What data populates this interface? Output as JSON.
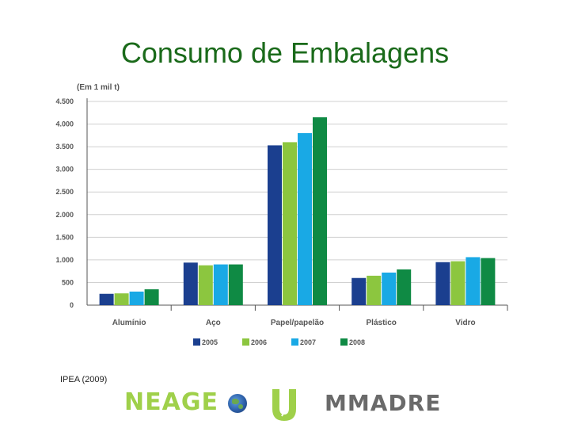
{
  "slide": {
    "title": "Consumo de Embalagens",
    "source": "IPEA (2009)",
    "logos": {
      "neage": "NEAGE",
      "mmadre": "MMADRE"
    }
  },
  "colors": {
    "title": "#1a6a1a",
    "axis": "#555555",
    "grid": "#d0d0d0"
  },
  "chart_data": {
    "type": "bar",
    "title": "",
    "unit_label": "(Em 1 mil t)",
    "categories": [
      "Alumínio",
      "Aço",
      "Papel/papelão",
      "Plástico",
      "Vidro"
    ],
    "series": [
      {
        "name": "2005",
        "color": "#1b3f8f",
        "values": [
          250,
          940,
          3530,
          600,
          950
        ]
      },
      {
        "name": "2006",
        "color": "#8cc63f",
        "values": [
          260,
          880,
          3600,
          650,
          970
        ]
      },
      {
        "name": "2007",
        "color": "#19a9e5",
        "values": [
          300,
          900,
          3800,
          720,
          1060
        ]
      },
      {
        "name": "2008",
        "color": "#0f8a44",
        "values": [
          350,
          900,
          4150,
          790,
          1040
        ]
      }
    ],
    "yticks": [
      {
        "value": 0,
        "label": "0"
      },
      {
        "value": 500,
        "label": "500"
      },
      {
        "value": 1000,
        "label": "1.000"
      },
      {
        "value": 1500,
        "label": "1.500"
      },
      {
        "value": 2000,
        "label": "2.000"
      },
      {
        "value": 2500,
        "label": "2.500"
      },
      {
        "value": 3000,
        "label": "3.000"
      },
      {
        "value": 3500,
        "label": "3.500"
      },
      {
        "value": 4000,
        "label": "4.000"
      },
      {
        "value": 4500,
        "label": "4.500"
      }
    ],
    "ylim": [
      0,
      4500
    ],
    "grid": true,
    "legend": "bottom"
  }
}
